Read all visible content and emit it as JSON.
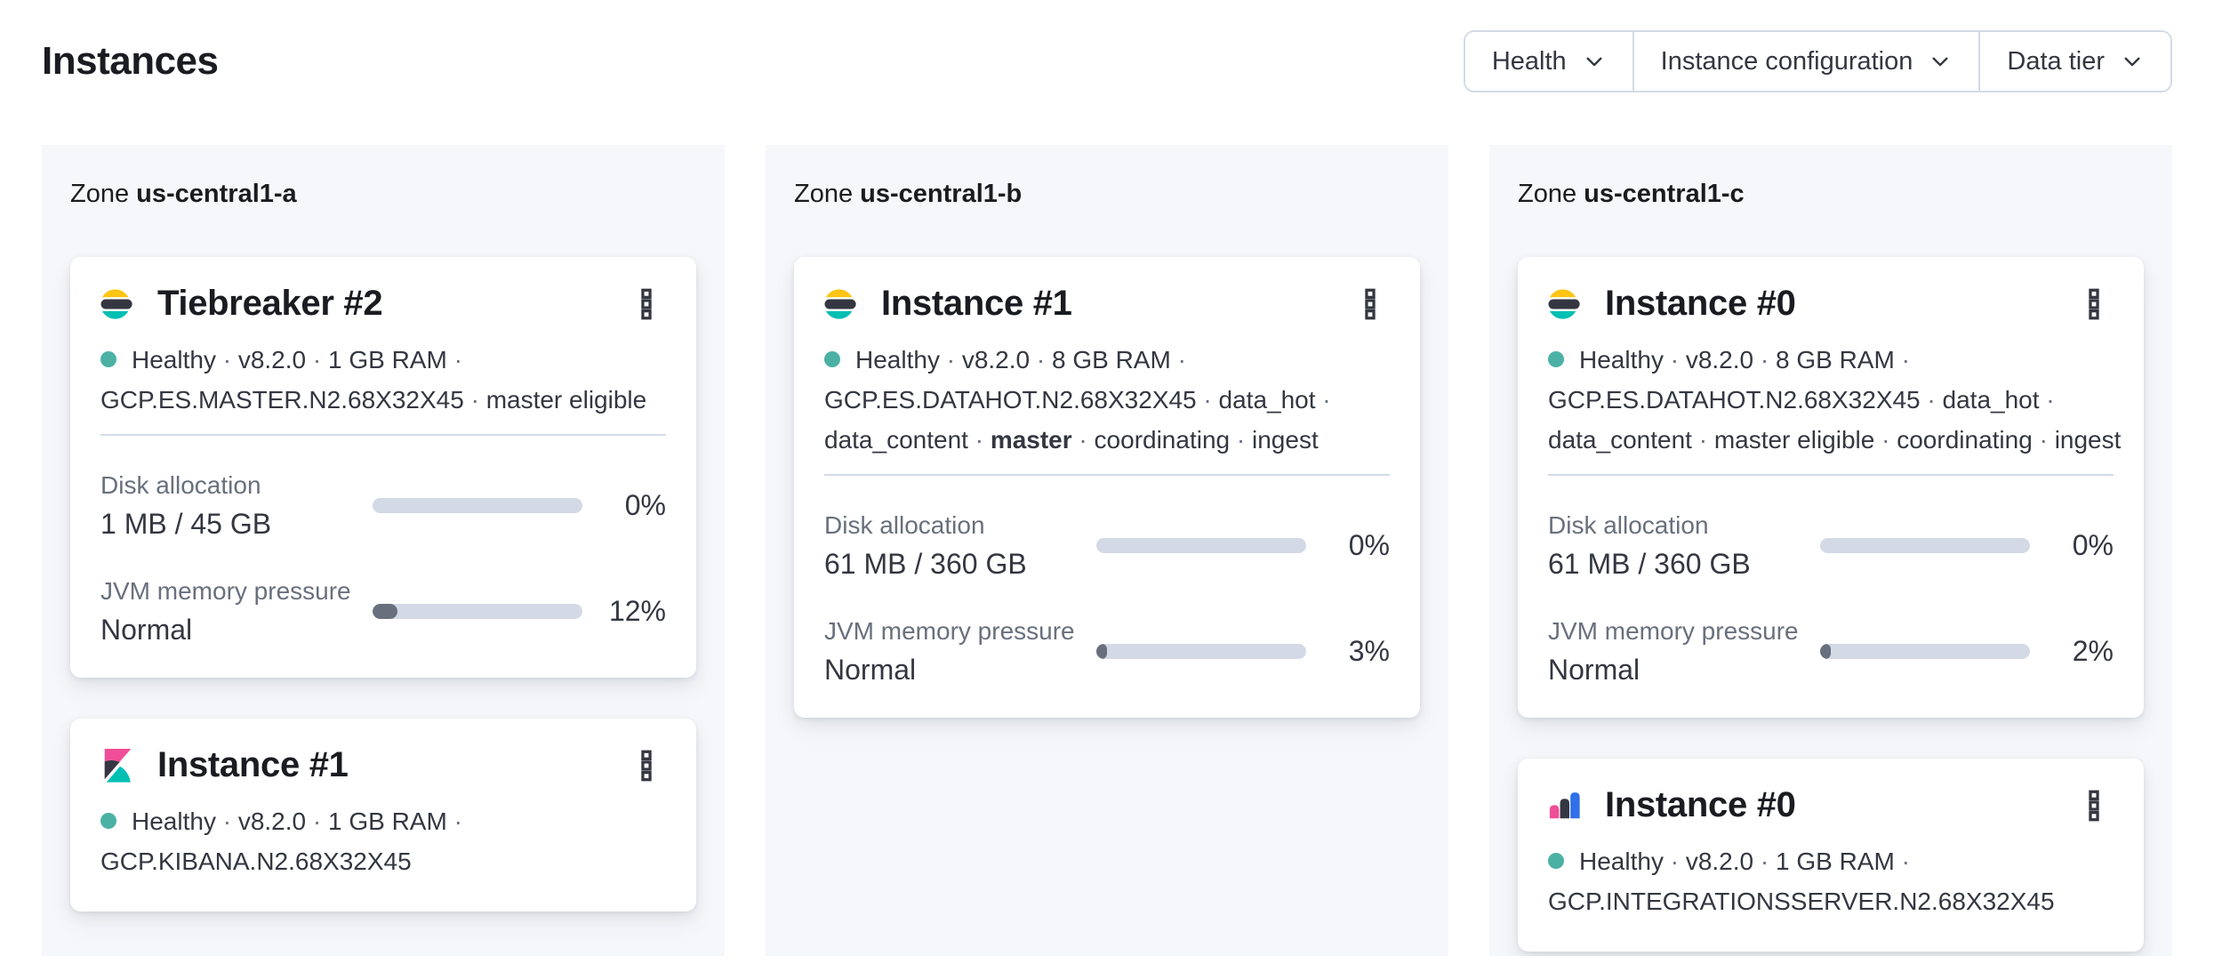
{
  "page": {
    "title": "Instances"
  },
  "filters": [
    {
      "label": "Health"
    },
    {
      "label": "Instance configuration"
    },
    {
      "label": "Data tier"
    }
  ],
  "colors": {
    "logo_yellow": "#fec514",
    "logo_dark": "#343741",
    "logo_teal": "#00bfb3",
    "logo_pink": "#f04e98",
    "logo_blue": "#3070e8",
    "health_dot": "#4bb1a5",
    "bar_track": "#d3dae6",
    "bar_fill": "#69707d",
    "zone_panel_bg": "#f6f7fb"
  },
  "zones": [
    {
      "label_prefix": "Zone",
      "name": "us-central1-a",
      "cards": [
        {
          "logo": "elasticsearch",
          "title": "Tiebreaker #2",
          "status_lines": [
            {
              "segments": [
                {
                  "text": "Healthy"
                },
                {
                  "sep": " · "
                },
                {
                  "text": "v8.2.0"
                },
                {
                  "sep": " · "
                },
                {
                  "text": "1 GB RAM"
                },
                {
                  "sep": " · "
                }
              ]
            },
            {
              "segments": [
                {
                  "text": "GCP.ES.MASTER.N2.68X32X45"
                },
                {
                  "sep": " · "
                },
                {
                  "text": "master eligible"
                }
              ]
            }
          ],
          "metrics": [
            {
              "label": "Disk allocation",
              "value": "1 MB / 45 GB",
              "percent_label": "0%",
              "percent": 0
            },
            {
              "label": "JVM memory pressure",
              "value": "Normal",
              "percent_label": "12%",
              "percent": 12
            }
          ]
        },
        {
          "logo": "kibana",
          "title": "Instance #1",
          "status_lines": [
            {
              "segments": [
                {
                  "text": "Healthy"
                },
                {
                  "sep": " · "
                },
                {
                  "text": "v8.2.0"
                },
                {
                  "sep": " · "
                },
                {
                  "text": "1 GB RAM"
                },
                {
                  "sep": " · "
                }
              ]
            },
            {
              "segments": [
                {
                  "text": "GCP.KIBANA.N2.68X32X45"
                }
              ]
            }
          ],
          "metrics": []
        }
      ]
    },
    {
      "label_prefix": "Zone",
      "name": "us-central1-b",
      "cards": [
        {
          "logo": "elasticsearch",
          "title": "Instance #1",
          "status_lines": [
            {
              "segments": [
                {
                  "text": "Healthy"
                },
                {
                  "sep": " · "
                },
                {
                  "text": "v8.2.0"
                },
                {
                  "sep": " · "
                },
                {
                  "text": "8 GB RAM"
                },
                {
                  "sep": " · "
                }
              ]
            },
            {
              "segments": [
                {
                  "text": "GCP.ES.DATAHOT.N2.68X32X45"
                },
                {
                  "sep": " · "
                },
                {
                  "text": "data_hot"
                },
                {
                  "sep": " · "
                }
              ]
            },
            {
              "segments": [
                {
                  "text": "data_content"
                },
                {
                  "sep": " · "
                },
                {
                  "text": "master",
                  "bold": true
                },
                {
                  "sep": " · "
                },
                {
                  "text": "coordinating"
                },
                {
                  "sep": " · "
                },
                {
                  "text": "ingest"
                }
              ]
            }
          ],
          "metrics": [
            {
              "label": "Disk allocation",
              "value": "61 MB / 360 GB",
              "percent_label": "0%",
              "percent": 0
            },
            {
              "label": "JVM memory pressure",
              "value": "Normal",
              "percent_label": "3%",
              "percent": 3
            }
          ]
        }
      ]
    },
    {
      "label_prefix": "Zone",
      "name": "us-central1-c",
      "cards": [
        {
          "logo": "elasticsearch",
          "title": "Instance #0",
          "status_lines": [
            {
              "segments": [
                {
                  "text": "Healthy"
                },
                {
                  "sep": " · "
                },
                {
                  "text": "v8.2.0"
                },
                {
                  "sep": " · "
                },
                {
                  "text": "8 GB RAM"
                },
                {
                  "sep": " · "
                }
              ]
            },
            {
              "segments": [
                {
                  "text": "GCP.ES.DATAHOT.N2.68X32X45"
                },
                {
                  "sep": " · "
                },
                {
                  "text": "data_hot"
                },
                {
                  "sep": " · "
                }
              ]
            },
            {
              "segments": [
                {
                  "text": "data_content"
                },
                {
                  "sep": " · "
                },
                {
                  "text": "master eligible"
                },
                {
                  "sep": " · "
                },
                {
                  "text": "coordinating"
                },
                {
                  "sep": " · "
                },
                {
                  "text": "ingest"
                }
              ]
            }
          ],
          "metrics": [
            {
              "label": "Disk allocation",
              "value": "61 MB / 360 GB",
              "percent_label": "0%",
              "percent": 0
            },
            {
              "label": "JVM memory pressure",
              "value": "Normal",
              "percent_label": "2%",
              "percent": 2
            }
          ]
        },
        {
          "logo": "integrations_server",
          "title": "Instance #0",
          "status_lines": [
            {
              "segments": [
                {
                  "text": "Healthy"
                },
                {
                  "sep": " · "
                },
                {
                  "text": "v8.2.0"
                },
                {
                  "sep": " · "
                },
                {
                  "text": "1 GB RAM"
                },
                {
                  "sep": " · "
                }
              ]
            },
            {
              "segments": [
                {
                  "text": "GCP.INTEGRATIONSSERVER.N2.68X32X45"
                }
              ]
            }
          ],
          "metrics": []
        }
      ]
    }
  ]
}
